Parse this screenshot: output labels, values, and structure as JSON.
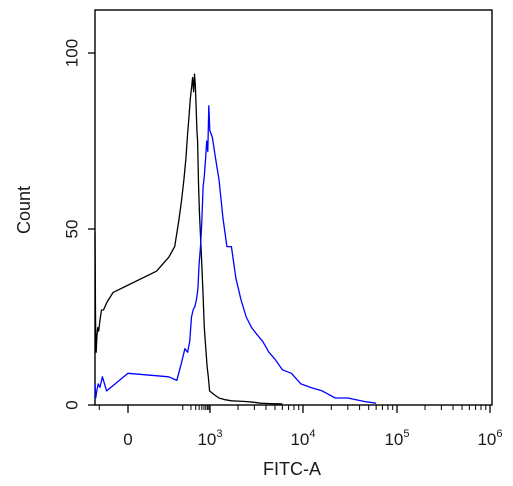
{
  "chart_data": {
    "type": "line",
    "title": "",
    "xlabel": "FITC-A",
    "ylabel": "Count",
    "x_scale": "biexponential",
    "xlim": [
      -200,
      1000000
    ],
    "ylim": [
      0,
      115
    ],
    "x_ticks": [
      {
        "value": 0,
        "base": "0",
        "exp": ""
      },
      {
        "value": 1000,
        "base": "10",
        "exp": "3"
      },
      {
        "value": 10000,
        "base": "10",
        "exp": "4"
      },
      {
        "value": 100000,
        "base": "10",
        "exp": "5"
      },
      {
        "value": 1000000,
        "base": "10",
        "exp": "6"
      }
    ],
    "y_ticks": [
      {
        "value": 0,
        "label": "0"
      },
      {
        "value": 50,
        "label": "50"
      },
      {
        "value": 100,
        "label": "100"
      }
    ],
    "grid": false,
    "legend": "none",
    "series": [
      {
        "color": "#000000",
        "x": [
          -200,
          -185,
          -175,
          -165,
          -150,
          -130,
          -110,
          -90,
          -70,
          -50,
          -30,
          -10,
          10,
          30,
          50,
          70,
          90,
          110,
          130,
          150,
          170,
          190,
          210,
          230,
          250,
          270,
          290,
          310,
          330,
          350,
          380,
          410,
          450,
          500,
          560,
          620,
          700,
          780,
          870,
          970,
          1100,
          1250,
          1450,
          1700,
          2000,
          2400,
          2900,
          3500,
          4500,
          6000
        ],
        "values": [
          49,
          26,
          18,
          15,
          19,
          22,
          21,
          24,
          27,
          27,
          29,
          32,
          38,
          42,
          45,
          52,
          58,
          64,
          70,
          77,
          82,
          87,
          90,
          93,
          89,
          94,
          91,
          85,
          78,
          75,
          63,
          55,
          48,
          40,
          31,
          22,
          16,
          11,
          8,
          4,
          3,
          2,
          1.5,
          1.2,
          1.1,
          1,
          0.8,
          0.5,
          0.4,
          0.3
        ]
      },
      {
        "color": "#0000ff",
        "x": [
          -200,
          -180,
          -150,
          -120,
          -90,
          -60,
          -30,
          0,
          30,
          60,
          90,
          120,
          150,
          180,
          210,
          240,
          280,
          320,
          360,
          400,
          450,
          500,
          560,
          620,
          690,
          760,
          830,
          900,
          980,
          1060,
          1150,
          1250,
          1380,
          1520,
          1700,
          1900,
          2150,
          2450,
          2800,
          3200,
          3700,
          4300,
          5000,
          6000,
          7500,
          9500,
          12000,
          16000,
          22000,
          30000,
          45000,
          60000
        ],
        "values": [
          6,
          2,
          4,
          6,
          5,
          8,
          4,
          9,
          8,
          7,
          12,
          16,
          15,
          18,
          25,
          27,
          28,
          30,
          33,
          40,
          45,
          52,
          62,
          65,
          70,
          75,
          72,
          85,
          78,
          76,
          70,
          64,
          53,
          45,
          45,
          36,
          30,
          25,
          22,
          20,
          18,
          15,
          13,
          10,
          9,
          6,
          5,
          4,
          2,
          2,
          1,
          0.5
        ]
      }
    ]
  }
}
